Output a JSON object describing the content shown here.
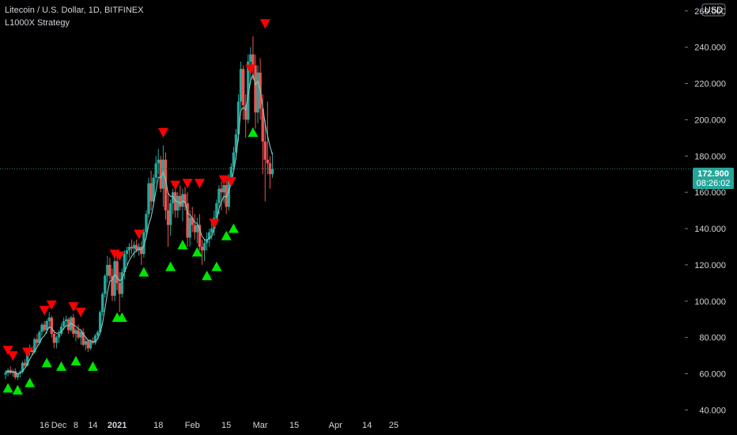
{
  "header": {
    "title": "Litecoin / U.S. Dollar, 1D, BITFINEX",
    "strategy": "L1000X Strategy"
  },
  "currency_badge": "USD",
  "price_badge": {
    "price": "172.900",
    "countdown": "08:26:02"
  },
  "colors": {
    "background": "#000000",
    "up_candle": "#26a69a",
    "down_candle": "#ef5350",
    "ma_line": "#80cbc4",
    "buy_marker": "#00e600",
    "sell_marker": "#ff0000",
    "price_badge": "#26a69a",
    "axis_text": "#d1d4dc",
    "price_line": "#2e7d6f"
  },
  "chart_data": {
    "type": "candlestick",
    "title": "Litecoin / U.S. Dollar, 1D, BITFINEX",
    "y_axis": {
      "ticks": [
        "40.000",
        "60.000",
        "80.000",
        "100.000",
        "120.000",
        "140.000",
        "160.000",
        "180.000",
        "200.000",
        "220.000",
        "240.000",
        "260.000"
      ],
      "range": [
        38,
        266
      ]
    },
    "x_axis": {
      "ticks": [
        {
          "label": "16",
          "day": 16,
          "bold": false
        },
        {
          "label": "Dec",
          "day": 22,
          "bold": false
        },
        {
          "label": "8",
          "day": 29,
          "bold": false
        },
        {
          "label": "14",
          "day": 36,
          "bold": false
        },
        {
          "label": "2021",
          "day": 46,
          "bold": true
        },
        {
          "label": "18",
          "day": 63,
          "bold": false
        },
        {
          "label": "Feb",
          "day": 77,
          "bold": false
        },
        {
          "label": "15",
          "day": 91,
          "bold": false
        },
        {
          "label": "Mar",
          "day": 105,
          "bold": false
        },
        {
          "label": "15",
          "day": 119,
          "bold": false
        },
        {
          "label": "Apr",
          "day": 136,
          "bold": false
        },
        {
          "label": "14",
          "day": 149,
          "bold": false
        },
        {
          "label": "25",
          "day": 160,
          "bold": false
        }
      ],
      "range": [
        0,
        168
      ]
    },
    "candles": [
      [
        59.5,
        62,
        57,
        60.5
      ],
      [
        60.5,
        63,
        58.5,
        62
      ],
      [
        62,
        64,
        59.5,
        60.5
      ],
      [
        60.5,
        62.5,
        58.5,
        61.5
      ],
      [
        61.5,
        63,
        57,
        58
      ],
      [
        58,
        60.5,
        56.5,
        60
      ],
      [
        60,
        62,
        58,
        61
      ],
      [
        61,
        67,
        60,
        66
      ],
      [
        66,
        68,
        63.5,
        64.5
      ],
      [
        64.5,
        73,
        64,
        72
      ],
      [
        72,
        76,
        70,
        73
      ],
      [
        73,
        75,
        70,
        72
      ],
      [
        72,
        80,
        71,
        79
      ],
      [
        79,
        82,
        75,
        77
      ],
      [
        77,
        84,
        76,
        83
      ],
      [
        83,
        88,
        81,
        87
      ],
      [
        87,
        89,
        83,
        84
      ],
      [
        84,
        90,
        82,
        89
      ],
      [
        89,
        94,
        85,
        91
      ],
      [
        91,
        92,
        80,
        82
      ],
      [
        82,
        84,
        74,
        77
      ],
      [
        77,
        81,
        74,
        80
      ],
      [
        80,
        84,
        77,
        82
      ],
      [
        82,
        88,
        81,
        86
      ],
      [
        86,
        91,
        84,
        89
      ],
      [
        89,
        92,
        86,
        90
      ],
      [
        90,
        91,
        82,
        84
      ],
      [
        84,
        92,
        83,
        91
      ],
      [
        91,
        93,
        80,
        82
      ],
      [
        82,
        85,
        78,
        84
      ],
      [
        84,
        87,
        79,
        80
      ],
      [
        80,
        84,
        76,
        83
      ],
      [
        83,
        85,
        75,
        76
      ],
      [
        76,
        80,
        73,
        78
      ],
      [
        78,
        79,
        72,
        74
      ],
      [
        74,
        79,
        73,
        78
      ],
      [
        78,
        80,
        76,
        77
      ],
      [
        77,
        82,
        76,
        81
      ],
      [
        81,
        84,
        79,
        83
      ],
      [
        83,
        95,
        82,
        94
      ],
      [
        94,
        105,
        92,
        104
      ],
      [
        104,
        115,
        102,
        114
      ],
      [
        114,
        125,
        110,
        120
      ],
      [
        120,
        124,
        112,
        114
      ],
      [
        114,
        118,
        100,
        103
      ],
      [
        103,
        125,
        100,
        122
      ],
      [
        122,
        126,
        106,
        110
      ],
      [
        110,
        116,
        94,
        104
      ],
      [
        104,
        118,
        102,
        116
      ],
      [
        116,
        128,
        112,
        126
      ],
      [
        126,
        130,
        120,
        128
      ],
      [
        128,
        132,
        124,
        130
      ],
      [
        130,
        134,
        126,
        129
      ],
      [
        129,
        133,
        124,
        131
      ],
      [
        131,
        134,
        127,
        128
      ],
      [
        128,
        132,
        125,
        130
      ],
      [
        130,
        133,
        120,
        126
      ],
      [
        126,
        140,
        124,
        138
      ],
      [
        138,
        150,
        135,
        148
      ],
      [
        148,
        168,
        146,
        165
      ],
      [
        165,
        172,
        150,
        155
      ],
      [
        155,
        170,
        152,
        168
      ],
      [
        168,
        180,
        165,
        176
      ],
      [
        176,
        184,
        170,
        178
      ],
      [
        178,
        180,
        160,
        162
      ],
      [
        162,
        186,
        152,
        178
      ],
      [
        178,
        182,
        145,
        150
      ],
      [
        150,
        160,
        130,
        142
      ],
      [
        142,
        156,
        136,
        154
      ],
      [
        154,
        162,
        148,
        160
      ],
      [
        160,
        166,
        146,
        150
      ],
      [
        150,
        160,
        146,
        158
      ],
      [
        158,
        164,
        150,
        152
      ],
      [
        152,
        162,
        144,
        159
      ],
      [
        159,
        163,
        150,
        154
      ],
      [
        154,
        160,
        130,
        135
      ],
      [
        135,
        150,
        130,
        146
      ],
      [
        146,
        152,
        138,
        142
      ],
      [
        142,
        148,
        134,
        138
      ],
      [
        138,
        146,
        132,
        142
      ],
      [
        142,
        148,
        128,
        130
      ],
      [
        130,
        134,
        120,
        128
      ],
      [
        128,
        134,
        122,
        132
      ],
      [
        132,
        138,
        128,
        134
      ],
      [
        134,
        140,
        130,
        138
      ],
      [
        138,
        144,
        134,
        140
      ],
      [
        140,
        150,
        136,
        146
      ],
      [
        146,
        156,
        142,
        154
      ],
      [
        154,
        164,
        148,
        162
      ],
      [
        162,
        166,
        150,
        160
      ],
      [
        160,
        166,
        154,
        164
      ],
      [
        164,
        168,
        148,
        152
      ],
      [
        152,
        170,
        150,
        168
      ],
      [
        168,
        176,
        164,
        174
      ],
      [
        174,
        185,
        172,
        182
      ],
      [
        182,
        195,
        178,
        192
      ],
      [
        192,
        214,
        188,
        210
      ],
      [
        210,
        232,
        204,
        228
      ],
      [
        228,
        230,
        200,
        208
      ],
      [
        208,
        214,
        190,
        200
      ],
      [
        200,
        236,
        198,
        232
      ],
      [
        232,
        240,
        220,
        236
      ],
      [
        236,
        246,
        222,
        230
      ],
      [
        230,
        236,
        195,
        204
      ],
      [
        204,
        230,
        198,
        226
      ],
      [
        226,
        234,
        200,
        206
      ],
      [
        206,
        214,
        170,
        188
      ],
      [
        188,
        200,
        155,
        178
      ],
      [
        178,
        210,
        170,
        176
      ],
      [
        176,
        180,
        162,
        170
      ],
      [
        170,
        182,
        168,
        172.9
      ]
    ],
    "moving_average": [
      60.8,
      61.2,
      61.0,
      60.9,
      60.5,
      60.0,
      60.3,
      61.6,
      63.0,
      65.1,
      68.1,
      70.3,
      72.5,
      74.6,
      76.9,
      79.6,
      81.0,
      83.4,
      85.8,
      85.3,
      83.1,
      82.3,
      82.5,
      83.4,
      85.0,
      86.5,
      86.3,
      87.8,
      86.8,
      86.2,
      84.7,
      84.3,
      81.8,
      80.3,
      78.4,
      78.4,
      77.4,
      77.9,
      79.1,
      82.6,
      87.9,
      95.9,
      104.5,
      111.1,
      111.7,
      114.6,
      113.2,
      111.2,
      112.2,
      115.6,
      119.3,
      122.5,
      124.7,
      126.7,
      127.7,
      128.8,
      128.4,
      130.6,
      135.1,
      142.1,
      146.2,
      153.3,
      160.8,
      168.4,
      168.0,
      171.0,
      167.0,
      159.6,
      157.7,
      157.9,
      155.3,
      154.8,
      153.8,
      155.2,
      154.6,
      148.3,
      147.6,
      145.9,
      143.3,
      142.9,
      139.9,
      135.7,
      134.0,
      133.6,
      134.8,
      135.9,
      139.8,
      144.5,
      151.0,
      154.6,
      157.9,
      157.3,
      160.5,
      164.9,
      171.3,
      179.2,
      191.1,
      205.2,
      206.8,
      205.4,
      213.5,
      221.5,
      224.9,
      219.3,
      221.2,
      216.5,
      207.3,
      197.8,
      191.3,
      185.4,
      180.7
    ],
    "buy_signals": [
      {
        "day": 1,
        "price": 52
      },
      {
        "day": 5,
        "price": 51
      },
      {
        "day": 10,
        "price": 55
      },
      {
        "day": 17,
        "price": 66
      },
      {
        "day": 23,
        "price": 64
      },
      {
        "day": 29,
        "price": 67
      },
      {
        "day": 36,
        "price": 64
      },
      {
        "day": 46,
        "price": 91
      },
      {
        "day": 48,
        "price": 91
      },
      {
        "day": 57,
        "price": 116
      },
      {
        "day": 68,
        "price": 119
      },
      {
        "day": 73,
        "price": 131
      },
      {
        "day": 79,
        "price": 127
      },
      {
        "day": 83,
        "price": 114
      },
      {
        "day": 87,
        "price": 119
      },
      {
        "day": 91,
        "price": 136
      },
      {
        "day": 94,
        "price": 140
      },
      {
        "day": 102,
        "price": 193
      }
    ],
    "sell_signals": [
      {
        "day": 1,
        "price": 73
      },
      {
        "day": 3,
        "price": 70
      },
      {
        "day": 9,
        "price": 72
      },
      {
        "day": 16,
        "price": 95
      },
      {
        "day": 19,
        "price": 98
      },
      {
        "day": 28,
        "price": 97
      },
      {
        "day": 31,
        "price": 94
      },
      {
        "day": 45,
        "price": 126
      },
      {
        "day": 47,
        "price": 125
      },
      {
        "day": 55,
        "price": 137
      },
      {
        "day": 65,
        "price": 193
      },
      {
        "day": 70,
        "price": 164
      },
      {
        "day": 75,
        "price": 165
      },
      {
        "day": 80,
        "price": 165
      },
      {
        "day": 86,
        "price": 143
      },
      {
        "day": 90,
        "price": 167
      },
      {
        "day": 93,
        "price": 166
      },
      {
        "day": 101,
        "price": 228
      },
      {
        "day": 107,
        "price": 253
      }
    ]
  }
}
